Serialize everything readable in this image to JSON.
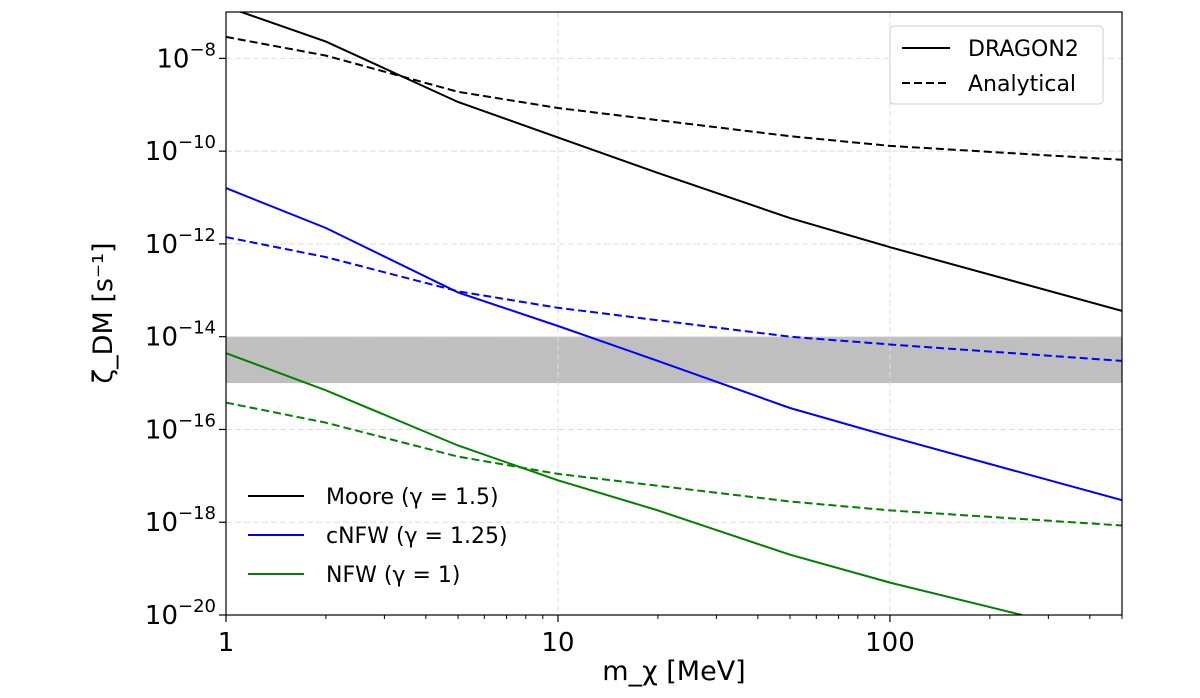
{
  "chart_data": {
    "type": "line",
    "xlabel": "m_χ  [MeV]",
    "ylabel": "ζ_DM  [s⁻¹]",
    "x_scale": "log",
    "y_scale": "log",
    "xlim": [
      1,
      500
    ],
    "ylim": [
      1e-20,
      1e-07
    ],
    "x_ticks": [
      {
        "value": 1,
        "label": "1"
      },
      {
        "value": 10,
        "label": "10"
      },
      {
        "value": 100,
        "label": "100"
      }
    ],
    "y_ticks": [
      {
        "value": 1e-20,
        "exp": "−20"
      },
      {
        "value": 1e-18,
        "exp": "−18"
      },
      {
        "value": 1e-16,
        "exp": "−16"
      },
      {
        "value": 1e-14,
        "exp": "−14"
      },
      {
        "value": 1e-12,
        "exp": "−12"
      },
      {
        "value": 1e-10,
        "exp": "−10"
      },
      {
        "value": 1e-08,
        "exp": "−8"
      }
    ],
    "grid": true,
    "band": {
      "y_range": [
        1e-15,
        1e-14
      ],
      "color": "#bfbfbf"
    },
    "colors": {
      "moore": "#000000",
      "cnfw": "#0000ff",
      "nfw": "#008000"
    },
    "series": [
      {
        "profile": "Moore",
        "method": "DRAGON2",
        "color": "#000000",
        "dash": "solid",
        "points": [
          [
            1,
            1.3e-07
          ],
          [
            2,
            2.3e-08
          ],
          [
            5,
            1.15e-09
          ],
          [
            20,
            3.4e-11
          ],
          [
            50,
            3.6e-12
          ],
          [
            100,
            8.5e-13
          ],
          [
            500,
            3.6e-14
          ]
        ]
      },
      {
        "profile": "Moore",
        "method": "Analytical",
        "color": "#000000",
        "dash": "dashed",
        "points": [
          [
            1,
            2.9e-08
          ],
          [
            2,
            1.15e-08
          ],
          [
            5,
            1.9e-09
          ],
          [
            10,
            8.5e-10
          ],
          [
            50,
            2.1e-10
          ],
          [
            100,
            1.3e-10
          ],
          [
            500,
            6.5e-11
          ]
        ]
      },
      {
        "profile": "cNFW",
        "method": "DRAGON2",
        "color": "#0000ff",
        "dash": "solid",
        "points": [
          [
            1,
            1.6e-11
          ],
          [
            2,
            2.2e-12
          ],
          [
            5,
            9e-14
          ],
          [
            10,
            1.7e-14
          ],
          [
            20,
            3e-15
          ],
          [
            50,
            2.9e-16
          ],
          [
            100,
            7e-17
          ],
          [
            200,
            1.8e-17
          ],
          [
            500,
            3e-18
          ]
        ]
      },
      {
        "profile": "cNFW",
        "method": "Analytical",
        "color": "#0000ff",
        "dash": "dashed",
        "points": [
          [
            1,
            1.4e-12
          ],
          [
            2,
            5.2e-13
          ],
          [
            5,
            9.5e-14
          ],
          [
            10,
            4.2e-14
          ],
          [
            50,
            1e-14
          ],
          [
            100,
            6.8e-15
          ],
          [
            500,
            3e-15
          ]
        ]
      },
      {
        "profile": "NFW",
        "method": "DRAGON2",
        "color": "#008000",
        "dash": "solid",
        "points": [
          [
            1,
            4.4e-15
          ],
          [
            2,
            7e-16
          ],
          [
            5,
            4.5e-17
          ],
          [
            10,
            8e-18
          ],
          [
            20,
            1.8e-18
          ],
          [
            50,
            2e-19
          ],
          [
            100,
            5e-20
          ],
          [
            250,
            1e-20
          ]
        ]
      },
      {
        "profile": "NFW",
        "method": "Analytical",
        "color": "#008000",
        "dash": "dashed",
        "points": [
          [
            1,
            3.8e-16
          ],
          [
            2,
            1.4e-16
          ],
          [
            5,
            2.6e-17
          ],
          [
            10,
            1.1e-17
          ],
          [
            50,
            2.8e-18
          ],
          [
            100,
            1.8e-18
          ],
          [
            500,
            8.5e-19
          ]
        ]
      }
    ],
    "legend_method": {
      "position": "top-right",
      "items": [
        {
          "label": "DRAGON2",
          "dash": "solid",
          "color": "#000000"
        },
        {
          "label": "Analytical",
          "dash": "dashed",
          "color": "#000000"
        }
      ]
    },
    "legend_profile": {
      "position": "bottom-left",
      "items": [
        {
          "label": "Moore (γ = 1.5)",
          "color": "#000000"
        },
        {
          "label": "cNFW (γ = 1.25)",
          "color": "#0000ff"
        },
        {
          "label": "NFW  (γ = 1)",
          "color": "#008000"
        }
      ]
    }
  }
}
